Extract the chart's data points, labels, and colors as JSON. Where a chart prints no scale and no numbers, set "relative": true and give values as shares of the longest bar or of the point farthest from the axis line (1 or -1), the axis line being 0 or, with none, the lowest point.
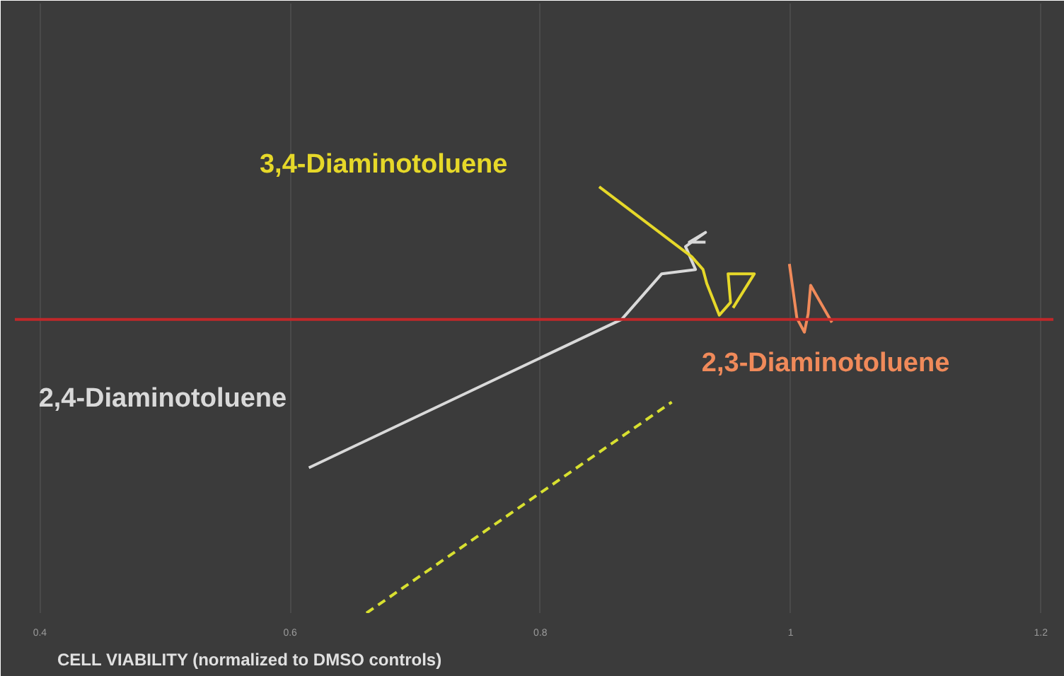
{
  "chart_data": {
    "type": "line",
    "relative": true,
    "xlabel": "CELL VIABILITY (normalized to DMSO controls)",
    "xlim": [
      0.38,
      1.21
    ],
    "xticks": [
      0.4,
      0.6,
      0.8,
      1,
      1.2
    ],
    "grid": "x",
    "marker": "none",
    "series": [
      {
        "name": "2,4-Diaminotoluene",
        "color": "#d9d9d9",
        "x": [
          0.615,
          0.865,
          0.897,
          0.924,
          0.916,
          0.932,
          0.919,
          0.932
        ],
        "values": [
          0.341,
          0.689,
          0.796,
          0.806,
          0.86,
          0.893,
          0.87,
          0.87
        ]
      },
      {
        "name": "3,4-Diaminotoluene",
        "color": "#e6d829",
        "x": [
          0.847,
          0.921,
          0.93,
          0.933,
          0.943,
          0.952,
          0.95,
          0.971,
          0.954
        ],
        "values": [
          1.0,
          0.836,
          0.806,
          0.773,
          0.699,
          0.729,
          0.796,
          0.796,
          0.716
        ]
      },
      {
        "name": "2,3-Diaminotoluene",
        "color": "#f08a5a",
        "x": [
          0.999,
          1.005,
          1.011,
          1.014,
          1.016,
          1.033
        ],
        "values": [
          0.819,
          0.692,
          0.659,
          0.702,
          0.769,
          0.682
        ]
      },
      {
        "color": "#d8e030",
        "line_style": "dashed",
        "x": [
          0.661,
          0.905
        ],
        "values": [
          0.0,
          0.495
        ]
      }
    ],
    "ref_lines": [
      {
        "axis": "y",
        "value": 0.689,
        "color": "#c0282a"
      }
    ]
  }
}
